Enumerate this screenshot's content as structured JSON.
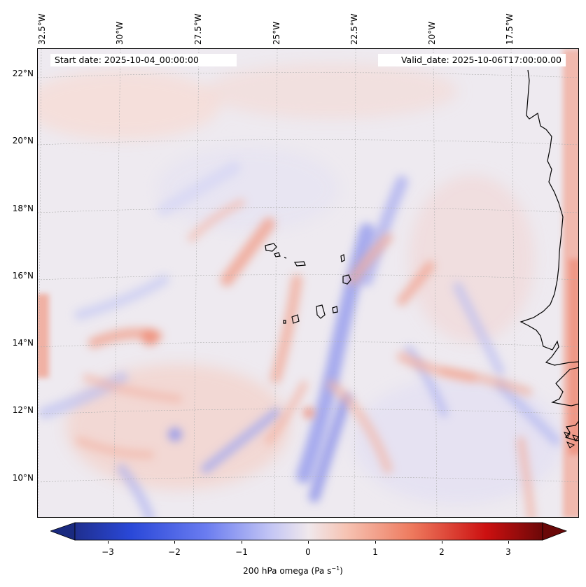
{
  "map": {
    "variable": "200 hPa omega",
    "units_prefix": "(Pa s",
    "units_exp": "−1",
    "units_suffix": ")",
    "start_label": "Start date: 2025-10-04_00:00:00",
    "valid_label": "Valid_date: 2025-10-06T17:00:00.00",
    "lon_labels": [
      "32.5°W",
      "30°W",
      "27.5°W",
      "25°W",
      "22.5°W",
      "20°W",
      "17.5°W"
    ],
    "lat_labels": [
      "22°N",
      "20°N",
      "18°N",
      "16°N",
      "14°N",
      "12°N",
      "10°N"
    ],
    "colorbar": {
      "colormap": "coolwarm (dark blue → white → dark red)",
      "min": -3.6,
      "max": 3.6,
      "ticks": [
        "−3",
        "−2",
        "−1",
        "0",
        "1",
        "2",
        "3"
      ],
      "extend": "both"
    },
    "colors": {
      "neg_strong": "#1a2a80",
      "neg_mid": "#5b6ef0",
      "neutral": "#eeeaf0",
      "pos_mid": "#f0705a",
      "pos_strong": "#6a0808",
      "coastline": "#000000",
      "gridline": "#b0b0b0"
    }
  }
}
